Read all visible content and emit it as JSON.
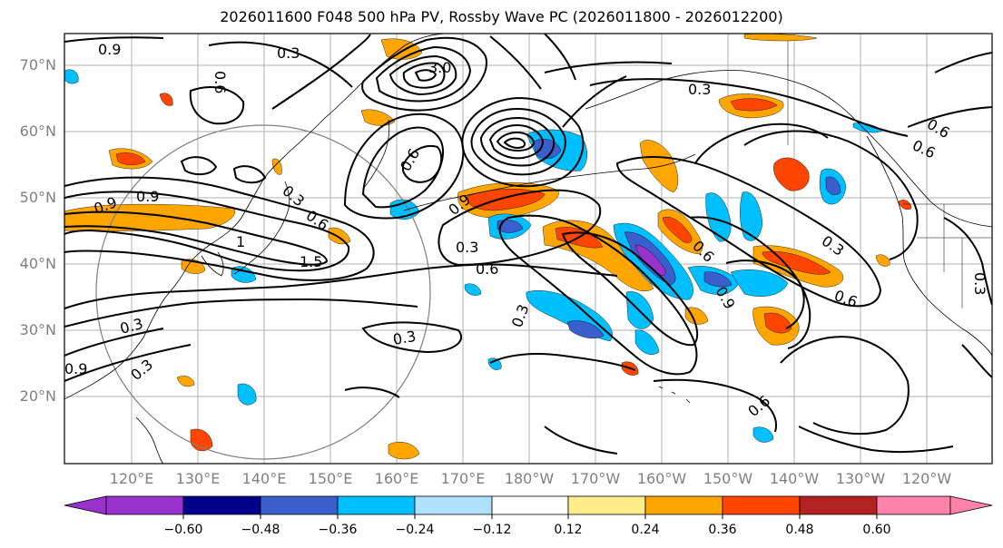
{
  "title": "2026011600 F048 500 hPa PV, Rossby Wave PC (2026011800 - 2026012200)",
  "lat_labels": [
    "70°N",
    "60°N",
    "50°N",
    "40°N",
    "30°N",
    "20°N"
  ],
  "lon_labels": [
    "120°E",
    "130°E",
    "140°E",
    "150°E",
    "160°E",
    "170°E",
    "180°W",
    "170°W",
    "160°W",
    "150°W",
    "140°W",
    "130°W",
    "120°W"
  ],
  "contour_labels": [
    "0.9",
    "0.3",
    "0.6",
    "3.0",
    "0.3",
    "0.6",
    "0.9",
    "0.3",
    "0.6",
    "0.9",
    "0.6",
    "1",
    "1.5",
    "0.3",
    "0.9",
    "0.3",
    "0.6",
    "0.6",
    "0.3",
    "0.3",
    "0.3",
    "0.6",
    "0.9",
    "0.6",
    "0.3",
    "0.9",
    "0.3",
    "0.6"
  ],
  "colorbar": {
    "ticks": [
      "−0.60",
      "−0.48",
      "−0.36",
      "−0.24",
      "−0.12",
      "0.12",
      "0.24",
      "0.36",
      "0.48",
      "0.60"
    ],
    "colors": [
      "#9932cc",
      "#00008b",
      "#3a5fcd",
      "#00bfff",
      "#b0e2ff",
      "#ffffff",
      "#ffec8b",
      "#ffa500",
      "#ff4500",
      "#b22222",
      "#ff82ab"
    ]
  }
}
